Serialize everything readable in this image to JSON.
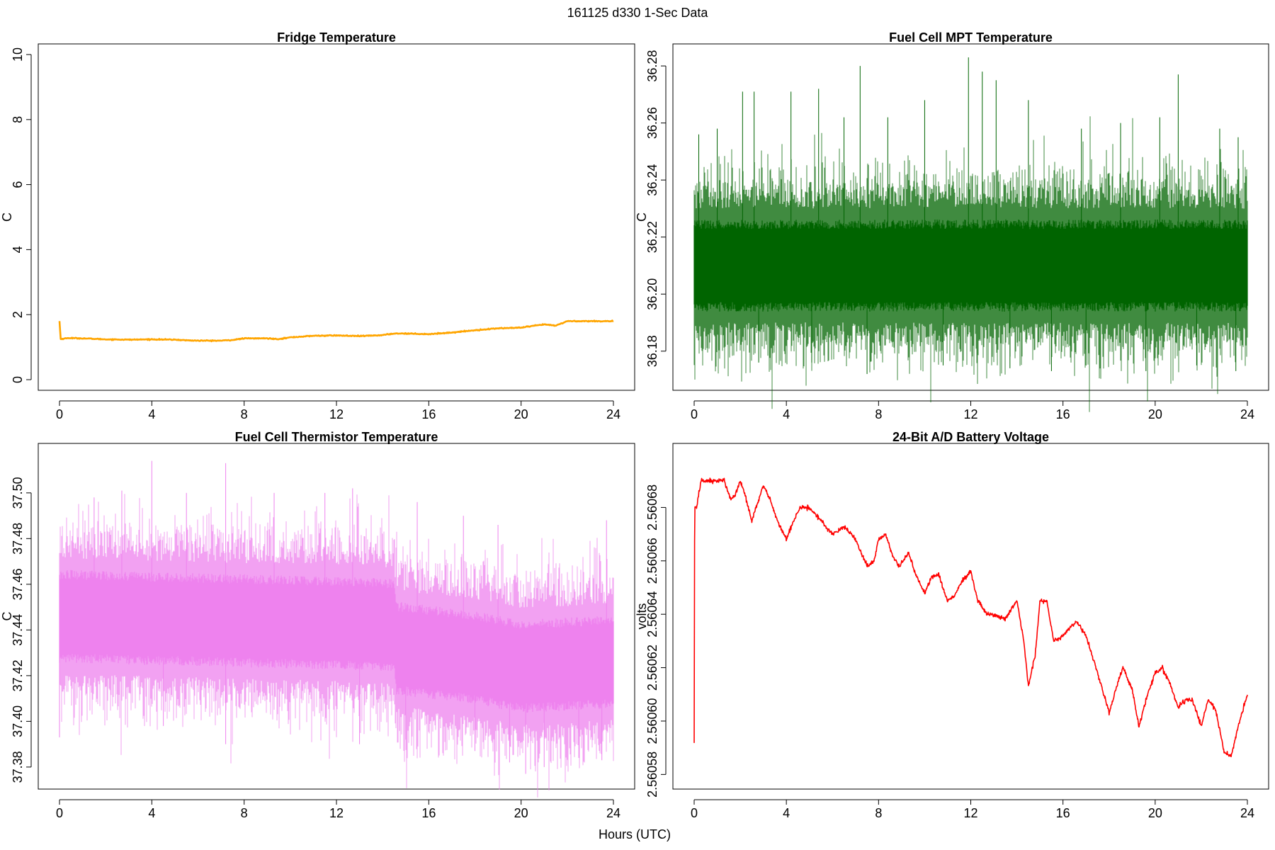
{
  "figure": {
    "title": "161125   d330   1-Sec Data",
    "xlabel": "Hours (UTC)"
  },
  "colors": {
    "fridge": "#FFA500",
    "mpt": "#006400",
    "thermistor": "#EE82EE",
    "battery": "#FF0000"
  },
  "chart_data": [
    {
      "type": "line",
      "title": "Fridge Temperature",
      "xlabel": "",
      "ylabel": "C",
      "xlim": [
        0,
        24
      ],
      "ylim": [
        0,
        10
      ],
      "xticks": [
        0,
        4,
        8,
        12,
        16,
        20,
        24
      ],
      "yticks": [
        0,
        2,
        4,
        6,
        8,
        10
      ],
      "ytick_labels": [
        "0",
        "2",
        "4",
        "6",
        "8",
        "10"
      ],
      "color": "#FFA500",
      "noise": 0.012,
      "x": [
        0,
        0.05,
        0.4,
        1,
        2,
        3,
        4,
        5,
        5.5,
        6,
        7,
        7.5,
        8,
        9,
        9.5,
        10,
        11,
        12,
        13,
        14,
        14.5,
        15,
        16,
        17,
        18,
        19,
        20,
        20.5,
        21,
        21.5,
        22,
        23,
        24
      ],
      "y": [
        1.8,
        1.25,
        1.28,
        1.27,
        1.24,
        1.23,
        1.24,
        1.23,
        1.21,
        1.2,
        1.2,
        1.22,
        1.27,
        1.27,
        1.25,
        1.3,
        1.35,
        1.36,
        1.34,
        1.37,
        1.42,
        1.42,
        1.4,
        1.45,
        1.52,
        1.58,
        1.6,
        1.65,
        1.7,
        1.66,
        1.8,
        1.8,
        1.8
      ]
    },
    {
      "type": "line",
      "title": "Fuel Cell MPT Temperature",
      "xlabel": "",
      "ylabel": "C",
      "xlim": [
        0,
        24
      ],
      "ylim": [
        36.17,
        36.284
      ],
      "xticks": [
        0,
        4,
        8,
        12,
        16,
        20,
        24
      ],
      "yticks": [
        36.18,
        36.2,
        36.22,
        36.24,
        36.26,
        36.28
      ],
      "ytick_labels": [
        "36.18",
        "36.20",
        "36.22",
        "36.24",
        "36.26",
        "36.28"
      ],
      "color": "#006400",
      "noise": 0.0095,
      "x": [
        0,
        6,
        12,
        18,
        24
      ],
      "y": [
        36.21,
        36.21,
        36.21,
        36.21,
        36.21
      ],
      "spikes_up": [
        [
          0.2,
          36.256
        ],
        [
          1,
          36.258
        ],
        [
          2.1,
          36.271
        ],
        [
          2.6,
          36.271
        ],
        [
          4.2,
          36.271
        ],
        [
          5.4,
          36.272
        ],
        [
          6.5,
          36.262
        ],
        [
          7.2,
          36.28
        ],
        [
          8.4,
          36.262
        ],
        [
          10,
          36.268
        ],
        [
          11.9,
          36.283
        ],
        [
          12.5,
          36.278
        ],
        [
          13.1,
          36.275
        ],
        [
          14.5,
          36.268
        ],
        [
          16.8,
          36.258
        ],
        [
          18.5,
          36.26
        ],
        [
          20.2,
          36.262
        ],
        [
          21,
          36.277
        ],
        [
          22.8,
          36.258
        ],
        [
          23.6,
          36.255
        ]
      ],
      "spikes_down": [
        [
          2.8,
          36.176
        ],
        [
          5.1,
          36.176
        ],
        [
          7.5,
          36.172
        ],
        [
          10.8,
          36.175
        ],
        [
          13.7,
          36.174
        ],
        [
          15.5,
          36.173
        ],
        [
          17,
          36.175
        ],
        [
          19.6,
          36.173
        ],
        [
          21.8,
          36.175
        ],
        [
          23.5,
          36.173
        ]
      ]
    },
    {
      "type": "line",
      "title": "Fuel Cell Thermistor Temperature",
      "xlabel": "",
      "ylabel": "C",
      "xlim": [
        0,
        24
      ],
      "ylim": [
        37.375,
        37.517
      ],
      "xticks": [
        0,
        4,
        8,
        12,
        16,
        20,
        24
      ],
      "yticks": [
        37.38,
        37.4,
        37.42,
        37.44,
        37.46,
        37.48,
        37.5
      ],
      "ytick_labels": [
        "37.38",
        "37.40",
        "37.42",
        "37.44",
        "37.46",
        "37.48",
        "37.50"
      ],
      "color": "#EE82EE",
      "noise": 0.012,
      "x": [
        0,
        4,
        8,
        12,
        14.5,
        14.6,
        18,
        20,
        24
      ],
      "y": [
        37.446,
        37.445,
        37.444,
        37.443,
        37.442,
        37.432,
        37.428,
        37.424,
        37.426
      ],
      "spikes_up": [
        [
          1.5,
          37.498
        ],
        [
          2.7,
          37.501
        ],
        [
          4,
          37.514
        ],
        [
          5.5,
          37.5
        ],
        [
          7.2,
          37.513
        ],
        [
          9.3,
          37.5
        ],
        [
          11.5,
          37.5
        ],
        [
          12.7,
          37.502
        ],
        [
          15.5,
          37.496
        ],
        [
          17.5,
          37.49
        ],
        [
          19,
          37.486
        ],
        [
          23.7,
          37.488
        ]
      ],
      "spikes_down": [
        [
          0,
          37.393
        ],
        [
          4.5,
          37.398
        ],
        [
          7.2,
          37.39
        ],
        [
          13,
          37.39
        ],
        [
          15,
          37.392
        ],
        [
          18,
          37.387
        ],
        [
          19.5,
          37.382
        ],
        [
          20.2,
          37.377
        ],
        [
          21,
          37.38
        ],
        [
          22.5,
          37.384
        ],
        [
          23.5,
          37.383
        ]
      ]
    },
    {
      "type": "line",
      "title": "24-Bit A/D Battery Voltage",
      "xlabel": "",
      "ylabel": "volts",
      "xlim": [
        0,
        24
      ],
      "ylim": [
        2.5605785,
        2.5607
      ],
      "xticks": [
        0,
        4,
        8,
        12,
        16,
        20,
        24
      ],
      "yticks": [
        2.56058,
        2.5606,
        2.56062,
        2.56064,
        2.56066,
        2.56068
      ],
      "ytick_labels": [
        "2.56058",
        "2.56060",
        "2.56062",
        "2.56064",
        "2.56066",
        "2.56068"
      ],
      "color": "#FF0000",
      "noise": 7e-07,
      "x": [
        0,
        0.02,
        0.06,
        0.1,
        0.3,
        0.5,
        0.8,
        1,
        1.3,
        1.6,
        1.8,
        2,
        2.2,
        2.5,
        2.8,
        3,
        3.3,
        3.6,
        4,
        4.3,
        4.6,
        5,
        5.5,
        6,
        6.5,
        7,
        7.5,
        7.8,
        8,
        8.3,
        8.6,
        8.9,
        9.3,
        9.6,
        10,
        10.3,
        10.6,
        11,
        11.3,
        11.6,
        12,
        12.3,
        12.7,
        13,
        13.5,
        14,
        14.3,
        14.5,
        14.8,
        15,
        15.3,
        15.6,
        16,
        16.3,
        16.6,
        17,
        17.5,
        18,
        18.3,
        18.6,
        19,
        19.3,
        19.6,
        20,
        20.3,
        20.6,
        21,
        21.3,
        21.6,
        22,
        22.3,
        22.6,
        23,
        23.3,
        23.6,
        24
      ],
      "y": [
        2.560592,
        2.56068,
        2.56068,
        2.56068,
        2.56069,
        2.56069,
        2.56069,
        2.56069,
        2.56069,
        2.560683,
        2.560685,
        2.56069,
        2.560685,
        2.560675,
        2.560683,
        2.560688,
        2.560683,
        2.560675,
        2.560668,
        2.560675,
        2.56068,
        2.56068,
        2.560675,
        2.56067,
        2.560673,
        2.560668,
        2.560658,
        2.56066,
        2.560668,
        2.56067,
        2.560662,
        2.560658,
        2.560663,
        2.560655,
        2.560648,
        2.560654,
        2.560655,
        2.560645,
        2.560647,
        2.560652,
        2.560656,
        2.560645,
        2.56064,
        2.56064,
        2.560638,
        2.560645,
        2.56063,
        2.560613,
        2.560625,
        2.560645,
        2.560645,
        2.56063,
        2.560632,
        2.560635,
        2.560637,
        2.560632,
        2.560618,
        2.560603,
        2.560612,
        2.56062,
        2.560612,
        2.560598,
        2.560608,
        2.560618,
        2.56062,
        2.560615,
        2.560605,
        2.560608,
        2.560608,
        2.560598,
        2.560608,
        2.560605,
        2.560588,
        2.560587,
        2.560598,
        2.56061
      ]
    }
  ]
}
